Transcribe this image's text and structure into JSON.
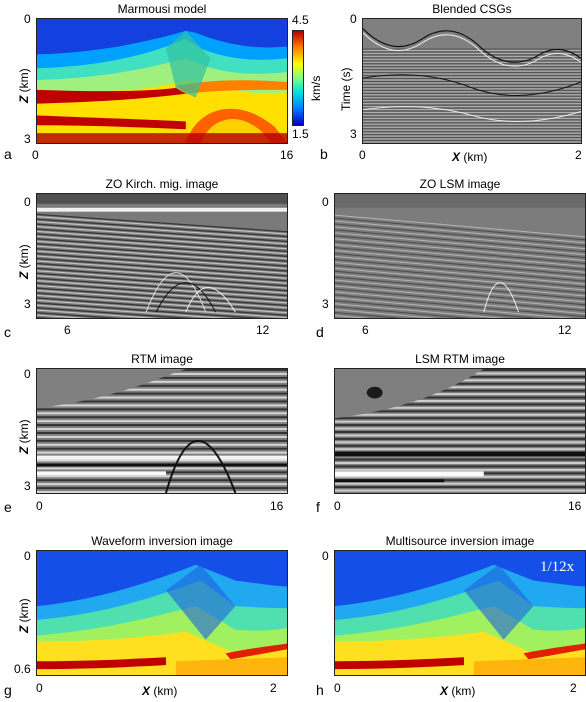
{
  "panels": [
    {
      "letter": "a",
      "title": "Marmousi model",
      "y_axis": "Z (km)",
      "y_ticks": [
        "0",
        "3"
      ],
      "x_ticks": [
        "0",
        "16"
      ],
      "x_label": "",
      "colorbar": {
        "max": "4.5",
        "min": "1.5",
        "unit": "km/s"
      }
    },
    {
      "letter": "b",
      "title": "Blended CSGs",
      "y_axis": "Time (s)",
      "y_ticks": [
        "0",
        "3"
      ],
      "x_ticks": [
        "0",
        "2"
      ],
      "x_label": "X (km)"
    },
    {
      "letter": "c",
      "title": "ZO Kirch. mig. image",
      "y_axis": "Z (km)",
      "y_ticks": [
        "0",
        "3"
      ],
      "x_ticks": [
        "6",
        "12"
      ],
      "x_label": ""
    },
    {
      "letter": "d",
      "title": "ZO LSM image",
      "y_axis": "",
      "y_ticks": [
        "0",
        "3"
      ],
      "x_ticks": [
        "6",
        "12"
      ],
      "x_label": ""
    },
    {
      "letter": "e",
      "title": "RTM image",
      "y_axis": "Z (km)",
      "y_ticks": [
        "0",
        "3"
      ],
      "x_ticks": [
        "0",
        "16"
      ],
      "x_label": ""
    },
    {
      "letter": "f",
      "title": "LSM RTM image",
      "y_axis": "",
      "y_ticks": [],
      "x_ticks": [
        "0",
        "16"
      ],
      "x_label": ""
    },
    {
      "letter": "g",
      "title": "Waveform inversion image",
      "y_axis": "Z (km)",
      "y_ticks": [
        "0",
        "0.6"
      ],
      "x_ticks": [
        "0",
        "2"
      ],
      "x_label": "X (km)"
    },
    {
      "letter": "h",
      "title": "Multisource inversion image",
      "y_axis": "",
      "y_ticks": [
        "0"
      ],
      "x_ticks": [
        "0",
        "2"
      ],
      "x_label": "X (km)",
      "annotation": "1/12x"
    }
  ]
}
